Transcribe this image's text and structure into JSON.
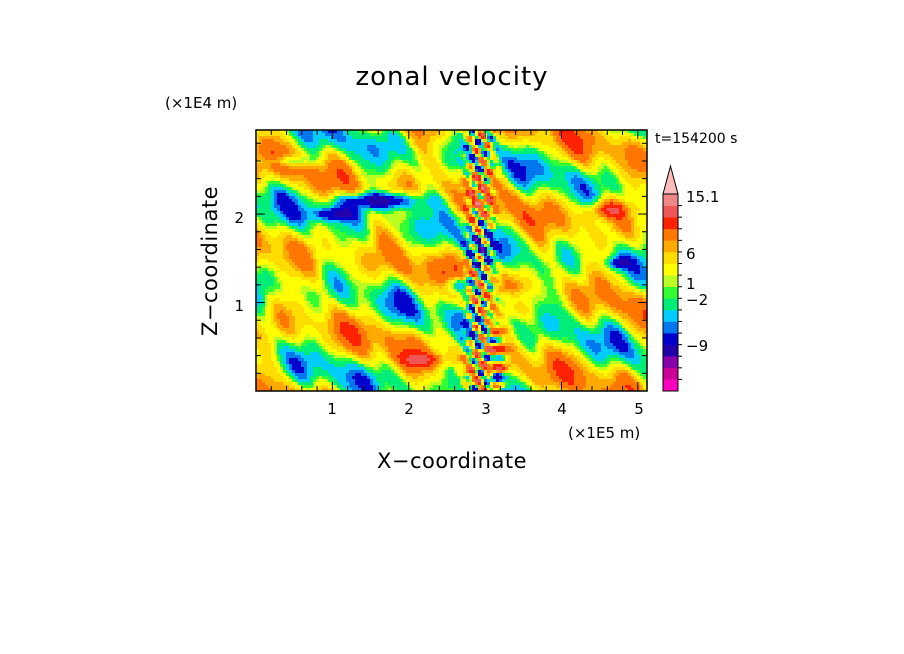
{
  "chart_data": {
    "type": "heatmap",
    "title": "zonal velocity",
    "xlabel": "X−coordinate",
    "ylabel": "Z−coordinate",
    "x_unit": "(×1E5 m)",
    "y_unit": "(×1E4 m)",
    "time_label": "t=154200 s",
    "x_ticks": [
      "1",
      "2",
      "3",
      "4",
      "5"
    ],
    "y_ticks": [
      "1",
      "2"
    ],
    "xlim": [
      0,
      5.12
    ],
    "ylim": [
      0,
      2.95
    ],
    "colorbar": {
      "labels": [
        {
          "text": "15.1",
          "value": 15.1
        },
        {
          "text": "6",
          "value": 6
        },
        {
          "text": "1",
          "value": 1
        },
        {
          "text": "−2",
          "value": -2
        },
        {
          "text": "−9",
          "value": -9
        }
      ],
      "levels": [
        {
          "max": -14,
          "color": "#ff00c0"
        },
        {
          "max": -11,
          "color": "#cc0099"
        },
        {
          "max": -8,
          "color": "#8800aa"
        },
        {
          "max": -5,
          "color": "#2200aa"
        },
        {
          "max": -3,
          "color": "#0000cc"
        },
        {
          "max": -2,
          "color": "#0077ee"
        },
        {
          "max": -1,
          "color": "#00ccff"
        },
        {
          "max": 0,
          "color": "#00ee77"
        },
        {
          "max": 0.5,
          "color": "#33ff33"
        },
        {
          "max": 1,
          "color": "#bbff22"
        },
        {
          "max": 2,
          "color": "#ffff00"
        },
        {
          "max": 3,
          "color": "#ffdd00"
        },
        {
          "max": 4,
          "color": "#ffaa00"
        },
        {
          "max": 6,
          "color": "#ff7700"
        },
        {
          "max": 8,
          "color": "#ff2200"
        },
        {
          "max": 11,
          "color": "#ee5555"
        },
        {
          "max": 14,
          "color": "#ee8888"
        },
        {
          "max": 999,
          "color": "#ffbbbb"
        }
      ]
    }
  }
}
